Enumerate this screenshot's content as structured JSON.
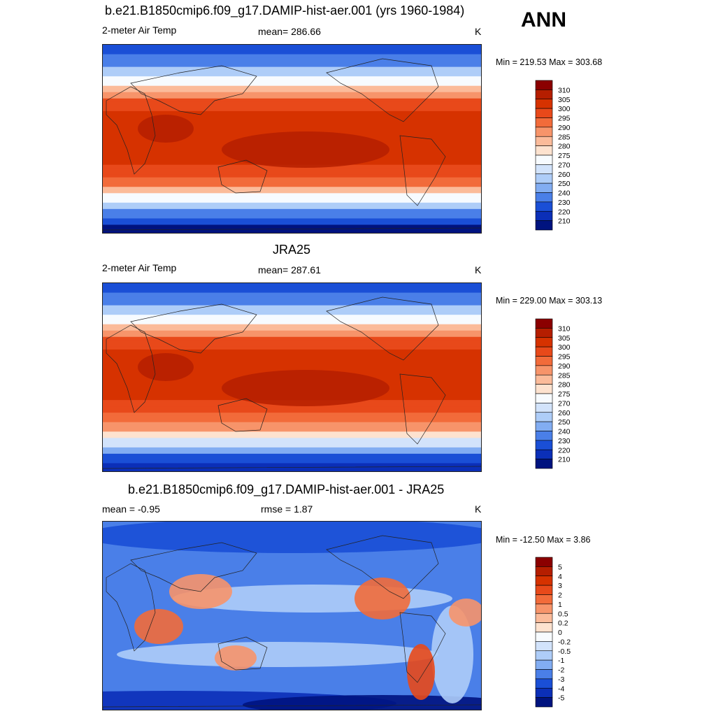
{
  "season": "ANN",
  "panels": [
    {
      "title": "b.e21.B1850cmip6.f09_g17.DAMIP-hist-aer.001 (yrs 1960-1984)",
      "left_label": "2-meter Air Temp",
      "center_label": "mean= 286.66",
      "right_label": "K",
      "minmax": "Min = 219.53 Max = 303.68",
      "kind": "abs"
    },
    {
      "title": "JRA25",
      "left_label": "2-meter Air Temp",
      "center_label": "mean= 287.61",
      "right_label": "K",
      "minmax": "Min = 229.00 Max = 303.13",
      "kind": "abs"
    },
    {
      "title": "b.e21.B1850cmip6.f09_g17.DAMIP-hist-aer.001 - JRA25",
      "left_label": "mean =  -0.95",
      "center_label": "rmse =   1.87",
      "right_label": "K",
      "minmax": "Min = -12.50 Max =   3.86",
      "kind": "diff"
    }
  ],
  "colorbars": {
    "abs": {
      "labels": [
        "310",
        "305",
        "300",
        "295",
        "290",
        "285",
        "280",
        "275",
        "270",
        "260",
        "250",
        "240",
        "230",
        "220",
        "210"
      ],
      "colors": [
        "#8b0000",
        "#b51e00",
        "#d63200",
        "#e8491a",
        "#f26b3a",
        "#f7946a",
        "#fbbb9a",
        "#fde2cf",
        "#f7fbff",
        "#d2e3fb",
        "#aecdf8",
        "#82adf2",
        "#4a7fe8",
        "#1a4fd6",
        "#0b2fb8",
        "#00137f"
      ]
    },
    "diff": {
      "labels": [
        "5",
        "4",
        "3",
        "2",
        "1",
        "0.5",
        "0.2",
        "0",
        "-0.2",
        "-0.5",
        "-1",
        "-2",
        "-3",
        "-4",
        "-5"
      ],
      "colors": [
        "#8b0000",
        "#b51e00",
        "#d63200",
        "#e8491a",
        "#f26b3a",
        "#f7946a",
        "#fbbb9a",
        "#fde2cf",
        "#f7fbff",
        "#d2e3fb",
        "#aecdf8",
        "#82adf2",
        "#4a7fe8",
        "#1a4fd6",
        "#0b2fb8",
        "#00137f"
      ]
    }
  },
  "chart_data": [
    {
      "type": "heatmap",
      "title": "b.e21.B1850cmip6.f09_g17.DAMIP-hist-aer.001 (yrs 1960-1984)",
      "subtitle_left": "2-meter Air Temp",
      "subtitle_center": "mean= 286.66",
      "units": "K",
      "min": 219.53,
      "max": 303.68,
      "levels": [
        210,
        220,
        230,
        240,
        250,
        260,
        270,
        275,
        280,
        285,
        290,
        295,
        300,
        305,
        310
      ]
    },
    {
      "type": "heatmap",
      "title": "JRA25",
      "subtitle_left": "2-meter Air Temp",
      "subtitle_center": "mean= 287.61",
      "units": "K",
      "min": 229.0,
      "max": 303.13,
      "levels": [
        210,
        220,
        230,
        240,
        250,
        260,
        270,
        275,
        280,
        285,
        290,
        295,
        300,
        305,
        310
      ]
    },
    {
      "type": "heatmap",
      "title": "b.e21.B1850cmip6.f09_g17.DAMIP-hist-aer.001 - JRA25",
      "subtitle_left": "mean =  -0.95",
      "subtitle_center": "rmse =   1.87",
      "units": "K",
      "min": -12.5,
      "max": 3.86,
      "levels": [
        -5,
        -4,
        -3,
        -2,
        -1,
        -0.5,
        -0.2,
        0,
        0.2,
        0.5,
        1,
        2,
        3,
        4,
        5
      ]
    }
  ]
}
